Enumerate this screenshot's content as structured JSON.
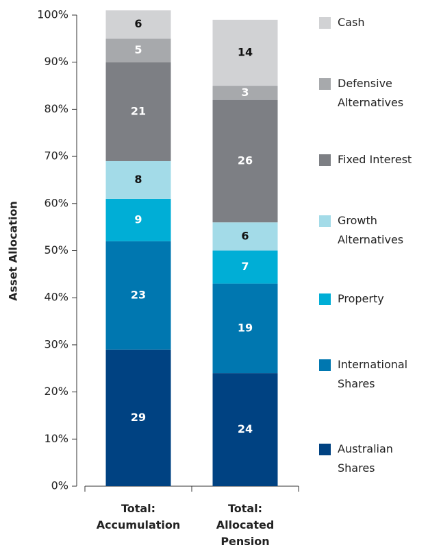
{
  "chart_data": {
    "type": "stacked_bar",
    "y_label": "Asset Allocation",
    "categories": [
      "Total: Accumulation",
      "Total: Allocated Pension"
    ],
    "series": [
      {
        "name": "Australian Shares",
        "color": "#004282",
        "label_color": "#ffffff",
        "values": [
          29,
          24
        ]
      },
      {
        "name": "International Shares",
        "color": "#0077b0",
        "label_color": "#ffffff",
        "values": [
          23,
          19
        ]
      },
      {
        "name": "Property",
        "color": "#00aed6",
        "label_color": "#ffffff",
        "values": [
          9,
          7
        ]
      },
      {
        "name": "Growth Alternatives",
        "color": "#a3dbe8",
        "label_color": "#111111",
        "values": [
          8,
          6
        ]
      },
      {
        "name": "Fixed Interest",
        "color": "#7d7f84",
        "label_color": "#ffffff",
        "values": [
          21,
          26
        ]
      },
      {
        "name": "Defensive Alternatives",
        "color": "#a7a9ac",
        "label_color": "#ffffff",
        "values": [
          5,
          3
        ]
      },
      {
        "name": "Cash",
        "color": "#d1d2d4",
        "label_color": "#111111",
        "values": [
          6,
          14
        ]
      }
    ],
    "ylim": [
      0,
      100
    ],
    "yticks": [
      {
        "value": 0,
        "label": "0%"
      },
      {
        "value": 10,
        "label": "10%"
      },
      {
        "value": 20,
        "label": "20%"
      },
      {
        "value": 30,
        "label": "30%"
      },
      {
        "value": 40,
        "label": "40%"
      },
      {
        "value": 50,
        "label": "50%"
      },
      {
        "value": 60,
        "label": "60%"
      },
      {
        "value": 70,
        "label": "70%"
      },
      {
        "value": 80,
        "label": "80%"
      },
      {
        "value": 90,
        "label": "90%"
      },
      {
        "value": 100,
        "label": "100%"
      }
    ],
    "legend": "right"
  }
}
